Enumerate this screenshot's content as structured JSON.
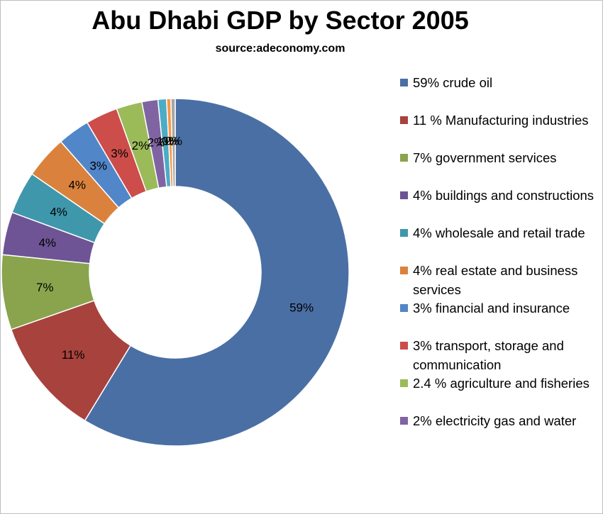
{
  "chart_data": {
    "type": "pie",
    "title": "Abu Dhabi GDP by Sector 2005",
    "subtitle": "source:adeconomy.com",
    "legend_position": "right",
    "categories": [
      "crude oil",
      "Manufacturing industries",
      "government services",
      "buildings and constructions",
      "wholesale and retail trade",
      "real estate and business services",
      "financial and insurance",
      "transport, storage and communication",
      "agriculture and fisheries",
      "electricity gas and water",
      "",
      "",
      ""
    ],
    "values": [
      59,
      11,
      7,
      4,
      4,
      4,
      3,
      3,
      2.4,
      1.5,
      0.8,
      0.4,
      0.4
    ],
    "data_labels": [
      "59%",
      "11%",
      "7%",
      "4%",
      "4%",
      "4%",
      "3%",
      "3%",
      "2%",
      "2%",
      "1%",
      "0%",
      "0%"
    ],
    "legend": [
      "59% crude oil",
      "11 % Manufacturing industries",
      "7% government services",
      "4% buildings and constructions",
      "4% wholesale and retail trade",
      "4% real estate and business services",
      "3% financial and insurance",
      "3% transport, storage and communication",
      "2.4 % agriculture and fisheries",
      "2% electricity gas and water"
    ],
    "colors": [
      "#4a6fa5",
      "#a8423d",
      "#89a44d",
      "#6e5494",
      "#3f97ac",
      "#da823d",
      "#5186c9",
      "#cc4d4a",
      "#9bbb59",
      "#8064a2",
      "#4bacc6",
      "#f79646",
      "#a6a6a6"
    ]
  }
}
